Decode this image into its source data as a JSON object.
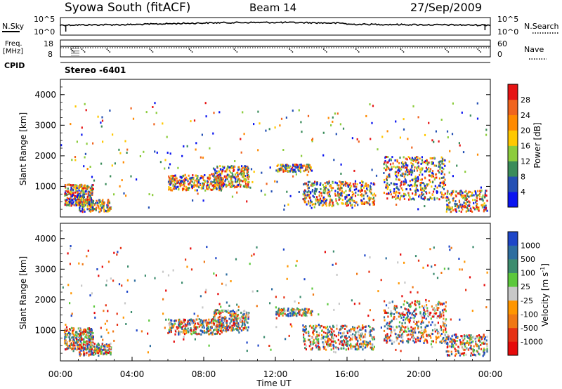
{
  "header": {
    "title": "Syowa South (fitACF)",
    "beam": "Beam 14",
    "date": "27/Sep/2009"
  },
  "noise_panel": {
    "left_label": "N.Sky",
    "left_ticks": [
      "10^5",
      "10^0"
    ],
    "right_ticks": [
      "10^5",
      "10^0"
    ],
    "right_label": "N.Search"
  },
  "freq_panel": {
    "left_label_1": "Freq.",
    "left_label_2": "[MHz]",
    "left_ticks": [
      "18",
      "8"
    ],
    "right_ticks": [
      "60",
      "0"
    ],
    "right_label": "Nave"
  },
  "cpid": {
    "label": "CPID",
    "value": "Stereo -6401"
  },
  "chart_data": [
    {
      "type": "heatmap",
      "name": "power",
      "ylabel": "Slant Range [km]",
      "yticks": [
        "1000",
        "2000",
        "3000",
        "4000"
      ],
      "ylim": [
        0,
        4500
      ],
      "xlim": [
        0,
        24
      ],
      "colorbar_label": "Power [dB]",
      "colorbar_ticks": [
        "4",
        "8",
        "12",
        "16",
        "20",
        "24",
        "28"
      ],
      "colors": [
        "#0a14f0",
        "#2450b4",
        "#3a8c5a",
        "#8ccc3c",
        "#ffc800",
        "#ff8a00",
        "#f0641e",
        "#e61414"
      ]
    },
    {
      "type": "heatmap",
      "name": "velocity",
      "ylabel": "Slant Range [km]",
      "yticks": [
        "1000",
        "2000",
        "3000",
        "4000"
      ],
      "ylim": [
        0,
        4500
      ],
      "xlim": [
        0,
        24
      ],
      "xlabel": "Time UT",
      "xticks": [
        "00:00",
        "04:00",
        "08:00",
        "12:00",
        "16:00",
        "20:00",
        "00:00"
      ],
      "colorbar_label": "Velocity [m s-1]",
      "colorbar_ticks": [
        "1000",
        "500",
        "100",
        "25",
        "-25",
        "-100",
        "-500",
        "-1000"
      ],
      "colors": [
        "#1e46c8",
        "#2e6ea0",
        "#3c8c6e",
        "#5cc83c",
        "#c8c8c8",
        "#ff9600",
        "#f07814",
        "#e63214",
        "#e60a0a"
      ]
    }
  ]
}
